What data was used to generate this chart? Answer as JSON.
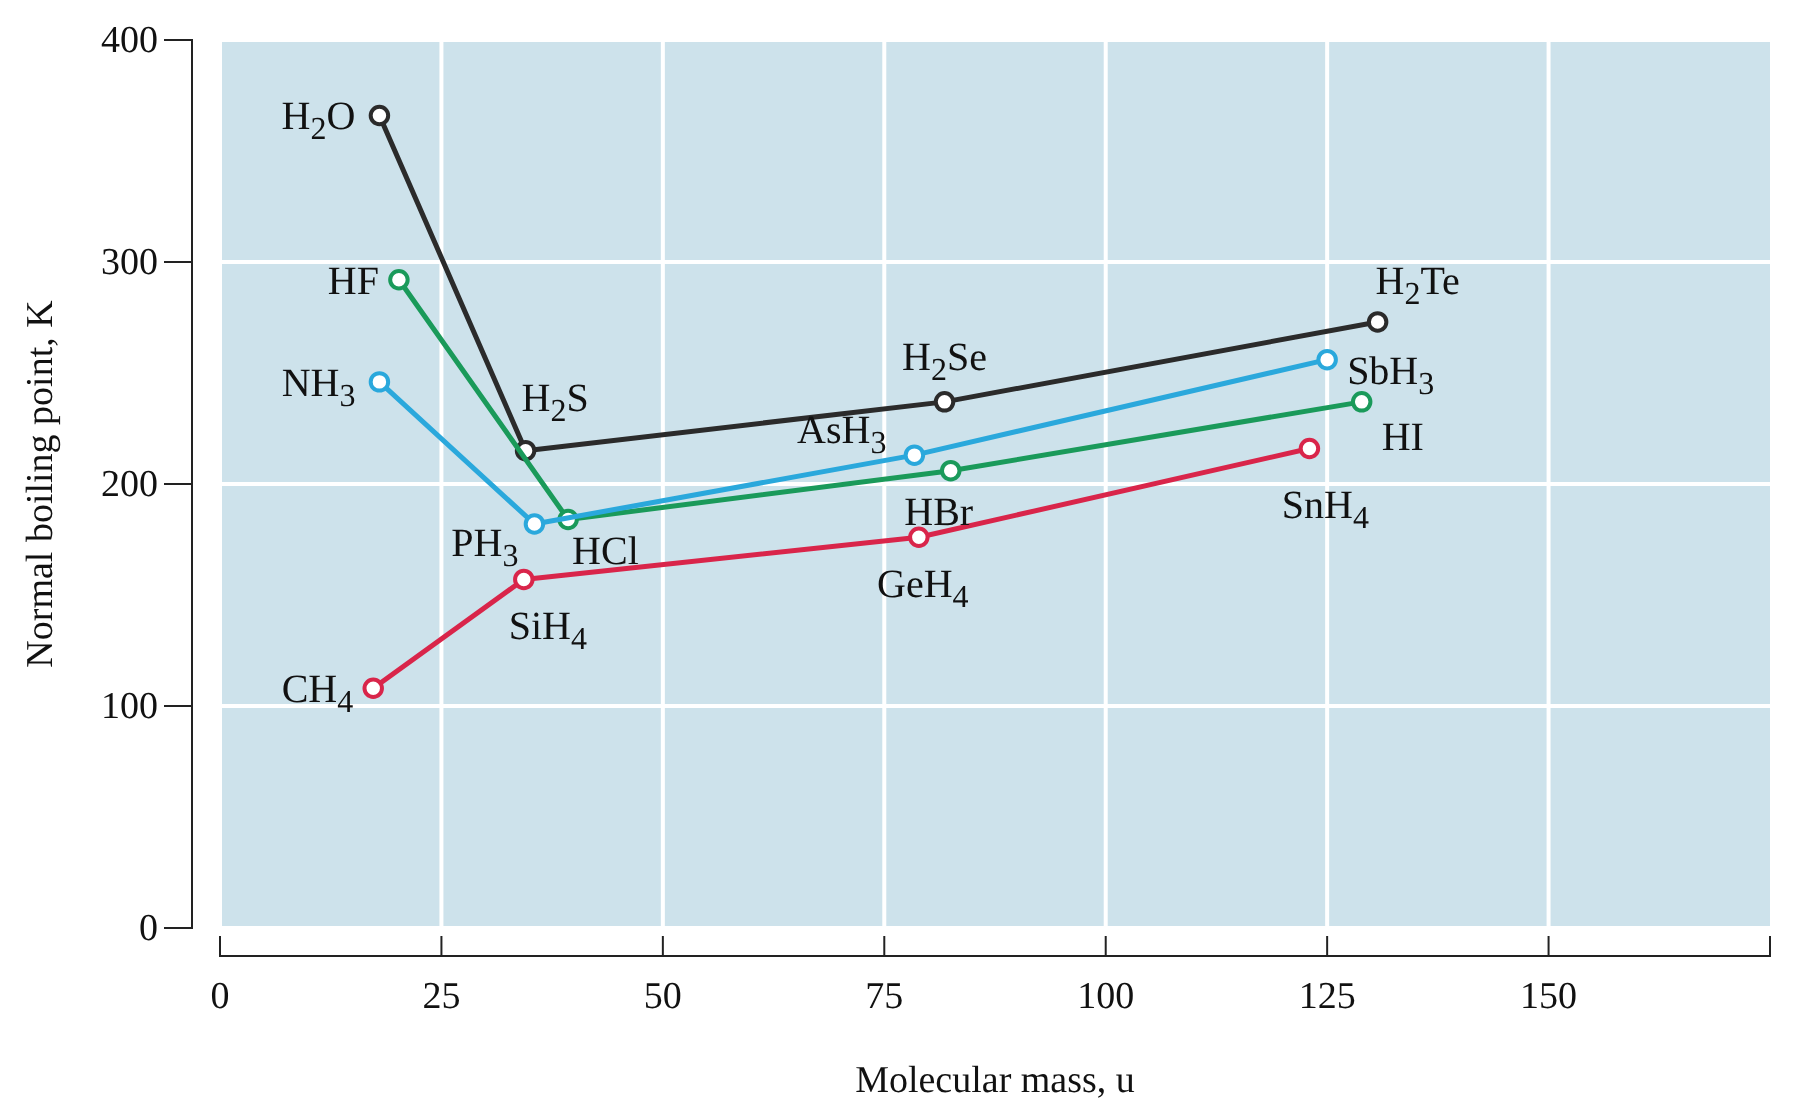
{
  "chart_data": {
    "type": "line",
    "xlabel": "Molecular mass, u",
    "ylabel": "Normal boiling point, K",
    "xlim": [
      0,
      175
    ],
    "xticks": [
      0,
      25,
      50,
      75,
      100,
      125,
      150
    ],
    "ylim": [
      0,
      400
    ],
    "yticks": [
      0,
      100,
      200,
      300,
      400
    ],
    "grid": true,
    "marker": "circle",
    "line_style": "solid",
    "series": [
      {
        "color": "#2b2b2b",
        "x": [
          18,
          34.5,
          81.8,
          130.7
        ],
        "values": [
          366,
          215,
          237,
          273
        ]
      },
      {
        "color": "#1a9a5a",
        "x": [
          20.2,
          39.3,
          82.5,
          128.9
        ],
        "values": [
          292,
          184,
          206,
          237
        ]
      },
      {
        "color": "#2aa8dc",
        "x": [
          18,
          35.5,
          78.4,
          125
        ],
        "values": [
          246,
          182,
          213,
          256
        ]
      },
      {
        "color": "#d9254a",
        "x": [
          17.3,
          34.3,
          78.9,
          123
        ],
        "values": [
          108,
          157,
          176,
          216
        ]
      }
    ],
    "annotations": [
      {
        "text": "H$_{2}$O",
        "x": 18,
        "y": 366
      },
      {
        "text": "H$_{2}$S",
        "x": 34.5,
        "y": 215
      },
      {
        "text": "H$_{2}$Se",
        "x": 81.8,
        "y": 237
      },
      {
        "text": "H$_{2}$Te",
        "x": 130.7,
        "y": 273
      },
      {
        "text": "HF",
        "x": 20.2,
        "y": 292
      },
      {
        "text": "HCl",
        "x": 39.3,
        "y": 184
      },
      {
        "text": "HBr",
        "x": 82.5,
        "y": 206
      },
      {
        "text": "HI",
        "x": 128.9,
        "y": 237
      },
      {
        "text": "NH$_{3}$",
        "x": 18,
        "y": 246
      },
      {
        "text": "PH$_{3}$",
        "x": 35.5,
        "y": 182
      },
      {
        "text": "AsH$_{3}$",
        "x": 78.4,
        "y": 213
      },
      {
        "text": "SbH$_{3}$",
        "x": 125,
        "y": 256
      },
      {
        "text": "CH$_{4}$",
        "x": 17.3,
        "y": 108
      },
      {
        "text": "SiH$_{4}$",
        "x": 34.3,
        "y": 157
      },
      {
        "text": "GeH$_{4}$",
        "x": 78.9,
        "y": 176
      },
      {
        "text": "SnH$_{4}$",
        "x": 123,
        "y": 216
      }
    ]
  }
}
